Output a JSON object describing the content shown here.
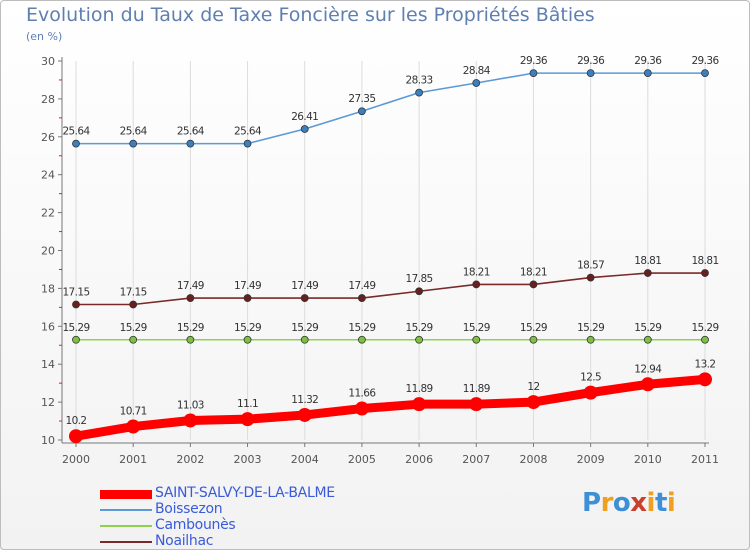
{
  "page": {
    "title": "Evolution du Taux de Taxe Foncière sur les Propriétés Bâties",
    "subtitle": "(en %)"
  },
  "logo": {
    "text": "Proxiti",
    "colors": [
      "#3d8fd6",
      "#f0a020",
      "#3d8fd6",
      "#c9402d",
      "#f0a020",
      "#3d8fd6",
      "#f0a020"
    ]
  },
  "chart_data": {
    "type": "line",
    "title": "Evolution du Taux de Taxe Foncière sur les Propriétés Bâties",
    "subtitle": "(en %)",
    "x": [
      "2000",
      "2001",
      "2002",
      "2003",
      "2004",
      "2005",
      "2006",
      "2007",
      "2008",
      "2009",
      "2010",
      "2011"
    ],
    "ylim": [
      10,
      30
    ],
    "yticks": [
      10,
      12,
      14,
      16,
      18,
      20,
      22,
      24,
      26,
      28,
      30
    ],
    "grid": "vertical",
    "legend_position": "bottom-left",
    "series": [
      {
        "name": "SAINT-SALVY-DE-LA-BALME",
        "color": "#ff0000",
        "marker_color": "#ff0000",
        "emphasis": true,
        "values": [
          10.2,
          10.71,
          11.03,
          11.1,
          11.32,
          11.66,
          11.89,
          11.89,
          12,
          12.5,
          12.94,
          13.2
        ],
        "labels": [
          "10.2",
          "10.71",
          "11.03",
          "11.1",
          "11.32",
          "11.66",
          "11.89",
          "11.89",
          "12",
          "12.5",
          "12.94",
          "13.2"
        ]
      },
      {
        "name": "Boissezon",
        "color": "#5b9bd5",
        "marker_color": "#3a7fc0",
        "values": [
          25.64,
          25.64,
          25.64,
          25.64,
          26.41,
          27.35,
          28.33,
          28.84,
          29.36,
          29.36,
          29.36,
          29.36
        ],
        "labels": [
          "25.64",
          "25.64",
          "25.64",
          "25.64",
          "26.41",
          "27.35",
          "28.33",
          "28.84",
          "29.36",
          "29.36",
          "29.36",
          "29.36"
        ]
      },
      {
        "name": "Cambounès",
        "color": "#8fd14f",
        "marker_color": "#7cc23c",
        "values": [
          15.29,
          15.29,
          15.29,
          15.29,
          15.29,
          15.29,
          15.29,
          15.29,
          15.29,
          15.29,
          15.29,
          15.29
        ],
        "labels": [
          "15.29",
          "15.29",
          "15.29",
          "15.29",
          "15.29",
          "15.29",
          "15.29",
          "15.29",
          "15.29",
          "15.29",
          "15.29",
          "15.29"
        ]
      },
      {
        "name": "Noailhac",
        "color": "#7b2a2a",
        "marker_color": "#6a1f1f",
        "values": [
          17.15,
          17.15,
          17.49,
          17.49,
          17.49,
          17.49,
          17.85,
          18.21,
          18.21,
          18.57,
          18.81,
          18.81
        ],
        "labels": [
          "17.15",
          "17.15",
          "17.49",
          "17.49",
          "17.49",
          "17.49",
          "17.85",
          "18.21",
          "18.21",
          "18.57",
          "18.81",
          "18.81"
        ]
      }
    ]
  }
}
